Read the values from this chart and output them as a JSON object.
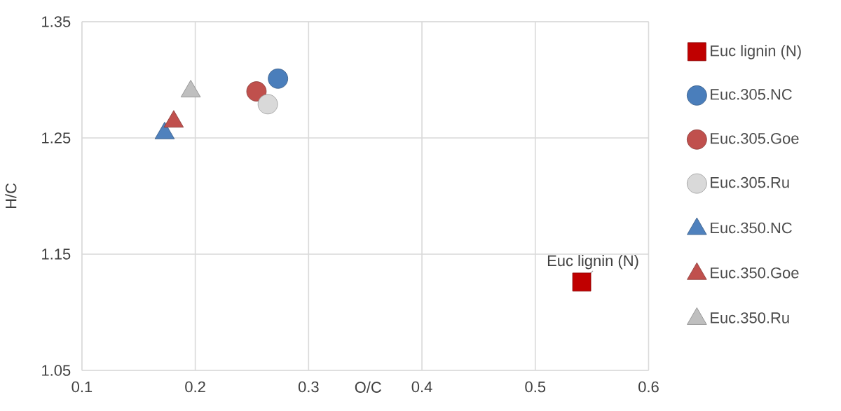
{
  "chart_data": {
    "type": "scatter",
    "xlabel": "O/C",
    "ylabel": "H/C",
    "xlim": [
      0.1,
      0.6
    ],
    "xticks": [
      0.1,
      0.2,
      0.3,
      0.4,
      0.5,
      0.6
    ],
    "ylim": [
      1.05,
      1.35
    ],
    "yticks": [
      1.05,
      1.15,
      1.25,
      1.35
    ],
    "grid": true,
    "legend": "right",
    "annotations": [
      {
        "text": "Euc lignin (N)",
        "x": 0.541,
        "y": 1.126
      }
    ],
    "series": [
      {
        "name": "Euc lignin (N)",
        "color": "#c00000",
        "marker": "square",
        "x": [
          0.541
        ],
        "values": [
          1.126
        ]
      },
      {
        "name": "Euc.305.NC",
        "color": "#4a7ebb",
        "marker": "circle",
        "x": [
          0.273
        ],
        "values": [
          1.301
        ]
      },
      {
        "name": "Euc.305.Goe",
        "color": "#c0504d",
        "marker": "circle",
        "x": [
          0.254
        ],
        "values": [
          1.29
        ]
      },
      {
        "name": "Euc.305.Ru",
        "color": "#d9d9d9",
        "marker": "circle",
        "x": [
          0.264
        ],
        "values": [
          1.279
        ]
      },
      {
        "name": "Euc.350.NC",
        "color": "#4f81bd",
        "marker": "triangle",
        "x": [
          0.173
        ],
        "values": [
          1.254
        ]
      },
      {
        "name": "Euc.350.Goe",
        "color": "#c0504d",
        "marker": "triangle",
        "x": [
          0.181
        ],
        "values": [
          1.264
        ]
      },
      {
        "name": "Euc.350.Ru",
        "color": "#bfbfbf",
        "marker": "triangle",
        "x": [
          0.196
        ],
        "values": [
          1.29
        ]
      }
    ]
  }
}
